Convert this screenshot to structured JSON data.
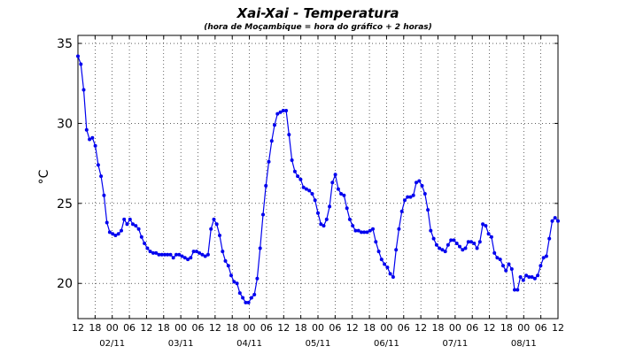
{
  "chart_data": {
    "type": "line",
    "title": "Xai-Xai - Temperatura",
    "subtitle": "(hora de Moçambique = hora do gráfico + 2 horas)",
    "xlabel": "",
    "ylabel": "°C",
    "ylim": [
      17.8,
      35.5
    ],
    "yticks": [
      20,
      25,
      30,
      35
    ],
    "x_hour_ticks": [
      "12",
      "18",
      "00",
      "06",
      "12",
      "18",
      "00",
      "06",
      "12",
      "18",
      "00",
      "06",
      "12",
      "18",
      "00",
      "06",
      "12",
      "18",
      "00",
      "06",
      "12",
      "18",
      "00",
      "06",
      "12",
      "18",
      "00",
      "06",
      "12"
    ],
    "x_date_labels": [
      "02/11",
      "03/11",
      "04/11",
      "05/11",
      "06/11",
      "07/11",
      "08/11"
    ],
    "x_range_hours": [
      0,
      168
    ],
    "grid": true,
    "series": [
      {
        "color": "#0000ee",
        "values": [
          34.2,
          33.7,
          32.1,
          29.6,
          29.0,
          29.1,
          28.6,
          27.4,
          26.7,
          25.5,
          23.8,
          23.2,
          23.1,
          23.0,
          23.1,
          23.3,
          24.0,
          23.7,
          24.0,
          23.7,
          23.6,
          23.4,
          22.9,
          22.5,
          22.2,
          22.0,
          21.9,
          21.9,
          21.8,
          21.8,
          21.8,
          21.8,
          21.8,
          21.6,
          21.8,
          21.8,
          21.7,
          21.6,
          21.5,
          21.6,
          22.0,
          22.0,
          21.9,
          21.8,
          21.7,
          21.8,
          23.4,
          24.0,
          23.7,
          23.0,
          22.0,
          21.4,
          21.1,
          20.5,
          20.1,
          20.0,
          19.4,
          19.1,
          18.8,
          18.8,
          19.1,
          19.3,
          20.3,
          22.2,
          24.3,
          26.1,
          27.6,
          28.9,
          29.9,
          30.6,
          30.7,
          30.8,
          30.8,
          29.3,
          27.7,
          27.0,
          26.7,
          26.5,
          26.0,
          25.9,
          25.8,
          25.6,
          25.2,
          24.4,
          23.7,
          23.6,
          24.0,
          24.8,
          26.3,
          26.8,
          25.9,
          25.6,
          25.5,
          24.7,
          24.0,
          23.6,
          23.3,
          23.3,
          23.2,
          23.2,
          23.2,
          23.3,
          23.4,
          22.6,
          22.0,
          21.5,
          21.2,
          21.0,
          20.6,
          20.4,
          22.1,
          23.4,
          24.5,
          25.2,
          25.4,
          25.4,
          25.5,
          26.3,
          26.4,
          26.1,
          25.6,
          24.6,
          23.3,
          22.8,
          22.4,
          22.2,
          22.1,
          22.0,
          22.4,
          22.7,
          22.7,
          22.5,
          22.3,
          22.1,
          22.2,
          22.6,
          22.6,
          22.5,
          22.2,
          22.6,
          23.7,
          23.6,
          23.1,
          22.9,
          21.9,
          21.6,
          21.5,
          21.1,
          20.8,
          21.2,
          20.9,
          19.6,
          19.6,
          20.4,
          20.2,
          20.5,
          20.4,
          20.4,
          20.3,
          20.5,
          21.1,
          21.6,
          21.7,
          22.8,
          23.9,
          24.1,
          23.9
        ]
      }
    ]
  }
}
